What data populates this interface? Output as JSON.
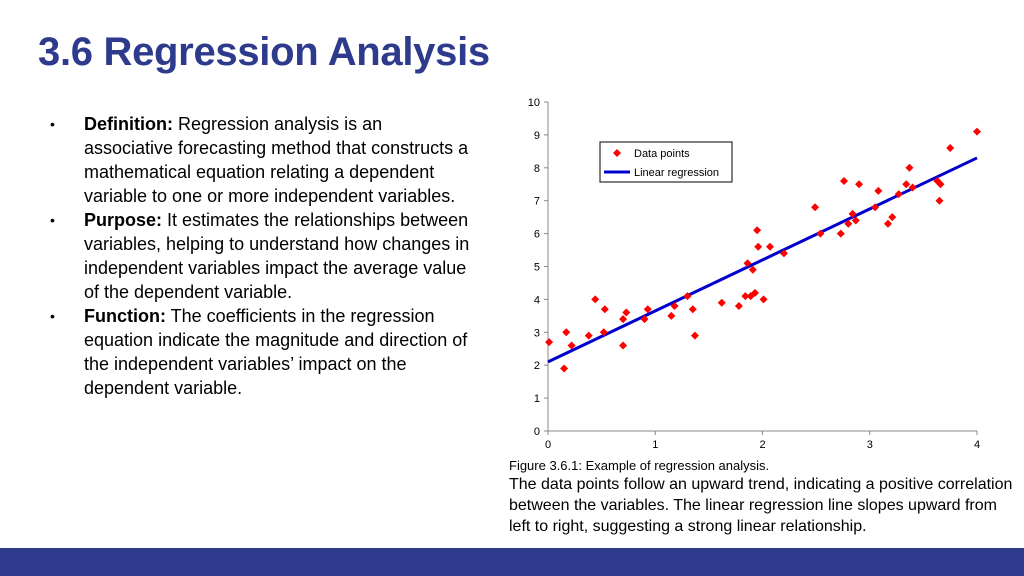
{
  "slide": {
    "title": "3.6 Regression Analysis",
    "bullets": [
      {
        "bullet": "•",
        "term": "Definition:",
        "text": " Regression analysis is an associative forecasting method that constructs a mathematical equation relating a dependent variable to one or more independent variables."
      },
      {
        "bullet": "•",
        "term": "Purpose:",
        "text": " It estimates the relationships between variables, helping to understand how changes in independent variables impact the average value of the dependent variable."
      },
      {
        "bullet": "•",
        "term": "Function:",
        "text": " The coefficients in the regression equation indicate the magnitude and direction of the independent variables’ impact on the dependent variable."
      }
    ],
    "figure_caption": "Figure 3.6.1: Example of regression analysis.",
    "figure_description": "The data points follow an upward trend, indicating a positive correlation between the variables. The linear regression line slopes upward from left to right, suggesting a strong linear relationship.",
    "colors": {
      "title": "#2e3a8c",
      "footer": "#2e3a8c",
      "points": "#ff0000",
      "line": "#0000cc"
    }
  },
  "chart_data": {
    "type": "scatter",
    "xlim": [
      0,
      4
    ],
    "ylim": [
      0,
      10
    ],
    "x_ticks": [
      "0",
      "1",
      "2",
      "3",
      "4"
    ],
    "y_ticks": [
      "0",
      "1",
      "2",
      "3",
      "4",
      "5",
      "6",
      "7",
      "8",
      "9",
      "10"
    ],
    "grid": false,
    "legend": {
      "position": "top-left",
      "entries": [
        "Data points",
        "Linear regression"
      ]
    },
    "series": [
      {
        "name": "Data points",
        "x": [
          0.01,
          0.15,
          0.17,
          0.22,
          0.38,
          0.44,
          0.52,
          0.53,
          0.7,
          0.7,
          0.73,
          0.9,
          0.93,
          1.15,
          1.18,
          1.3,
          1.35,
          1.37,
          1.62,
          1.78,
          1.84,
          1.86,
          1.89,
          1.91,
          1.93,
          1.95,
          1.96,
          2.01,
          2.07,
          2.2,
          2.49,
          2.54,
          2.73,
          2.76,
          2.8,
          2.84,
          2.87,
          2.9,
          3.05,
          3.08,
          3.17,
          3.21,
          3.27,
          3.34,
          3.37,
          3.4,
          3.63,
          3.65,
          3.66,
          3.75,
          4.0
        ],
        "y": [
          2.7,
          1.9,
          3.0,
          2.6,
          2.9,
          4.0,
          3.0,
          3.7,
          2.6,
          3.4,
          3.6,
          3.4,
          3.7,
          3.5,
          3.8,
          4.1,
          3.7,
          2.9,
          3.9,
          3.8,
          4.1,
          5.1,
          4.1,
          4.9,
          4.2,
          6.1,
          5.6,
          4.0,
          5.6,
          5.4,
          6.8,
          6.0,
          6.0,
          7.6,
          6.3,
          6.6,
          6.4,
          7.5,
          6.8,
          7.3,
          6.3,
          6.5,
          7.2,
          7.5,
          8.0,
          7.4,
          7.6,
          7.0,
          7.5,
          8.6,
          9.1
        ]
      },
      {
        "name": "Linear regression",
        "x": [
          0,
          4
        ],
        "y": [
          2.1,
          8.3
        ]
      }
    ]
  }
}
